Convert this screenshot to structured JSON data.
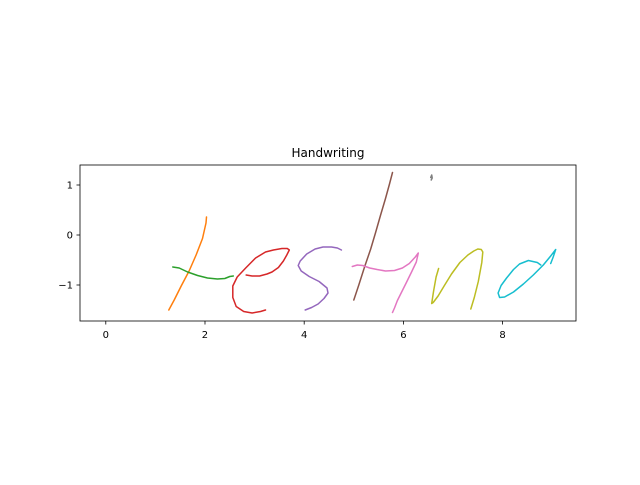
{
  "chart_data": {
    "type": "line",
    "title": "Handwriting",
    "xlabel": "",
    "ylabel": "",
    "xlim": [
      -0.52,
      9.48
    ],
    "ylim": [
      -1.72,
      1.4
    ],
    "x_ticks": [
      0,
      2,
      4,
      6,
      8
    ],
    "y_ticks": [
      1,
      0,
      -1
    ],
    "x_tick_labels": [
      "0",
      "2",
      "4",
      "6",
      "8"
    ],
    "y_tick_labels": [
      "1",
      "0",
      "−1"
    ],
    "grid": false,
    "aspect": "equal",
    "series": [
      {
        "color": "#ff7f0e",
        "x": [
          1.27,
          1.38,
          1.52,
          1.68,
          1.82,
          1.95,
          2.02,
          2.03
        ],
        "y": [
          -1.5,
          -1.3,
          -1.02,
          -0.72,
          -0.4,
          -0.07,
          0.24,
          0.36
        ]
      },
      {
        "color": "#2ca02c",
        "x": [
          1.35,
          1.48,
          1.65,
          1.85,
          2.05,
          2.25,
          2.4,
          2.5,
          2.57
        ],
        "y": [
          -0.64,
          -0.66,
          -0.74,
          -0.81,
          -0.86,
          -0.88,
          -0.87,
          -0.83,
          -0.82
        ]
      },
      {
        "color": "#d62728",
        "x": [
          2.83,
          2.95,
          3.1,
          3.25,
          3.35,
          3.48,
          3.58,
          3.65,
          3.7,
          3.66,
          3.55,
          3.38,
          3.22,
          3.02,
          2.82,
          2.65,
          2.56,
          2.56,
          2.63,
          2.78,
          2.95,
          3.12,
          3.22
        ],
        "y": [
          -0.8,
          -0.82,
          -0.82,
          -0.78,
          -0.74,
          -0.65,
          -0.52,
          -0.4,
          -0.3,
          -0.27,
          -0.27,
          -0.3,
          -0.34,
          -0.46,
          -0.66,
          -0.84,
          -1.02,
          -1.25,
          -1.43,
          -1.53,
          -1.56,
          -1.53,
          -1.5
        ]
      },
      {
        "color": "#9467bd",
        "x": [
          4.02,
          4.15,
          4.28,
          4.4,
          4.48,
          4.46,
          4.3,
          4.1,
          3.94,
          3.88,
          3.92,
          4.05,
          4.22,
          4.38,
          4.55,
          4.67,
          4.75
        ],
        "y": [
          -1.5,
          -1.45,
          -1.38,
          -1.27,
          -1.16,
          -1.06,
          -0.93,
          -0.83,
          -0.72,
          -0.61,
          -0.52,
          -0.38,
          -0.28,
          -0.24,
          -0.24,
          -0.26,
          -0.3
        ]
      },
      {
        "color": "#8c564b",
        "x": [
          5.0,
          5.1,
          5.22,
          5.34,
          5.44,
          5.54,
          5.64,
          5.72,
          5.78
        ],
        "y": [
          -1.3,
          -1.0,
          -0.63,
          -0.28,
          0.05,
          0.4,
          0.73,
          1.02,
          1.25
        ]
      },
      {
        "color": "#e377c2",
        "x": [
          4.97,
          5.07,
          5.18,
          5.32,
          5.47,
          5.64,
          5.82,
          5.98,
          6.12,
          6.24,
          6.3,
          6.26,
          6.16,
          6.06,
          5.95,
          5.88,
          5.82,
          5.78
        ],
        "y": [
          -0.63,
          -0.6,
          -0.61,
          -0.66,
          -0.69,
          -0.72,
          -0.71,
          -0.66,
          -0.57,
          -0.44,
          -0.36,
          -0.54,
          -0.75,
          -0.95,
          -1.17,
          -1.31,
          -1.46,
          -1.55
        ]
      },
      {
        "color": "#7f7f7f",
        "x": [
          6.55,
          6.57,
          6.58,
          6.56
        ],
        "y": [
          1.15,
          1.2,
          1.14,
          1.1
        ]
      },
      {
        "color": "#bcbd22",
        "x": [
          6.71,
          6.66,
          6.61,
          6.57,
          6.6,
          6.7,
          6.82,
          6.97,
          7.14,
          7.3,
          7.42,
          7.5,
          7.57,
          7.6,
          7.58,
          7.51,
          7.43,
          7.36
        ],
        "y": [
          -0.67,
          -0.84,
          -1.12,
          -1.37,
          -1.35,
          -1.22,
          -1.02,
          -0.78,
          -0.55,
          -0.4,
          -0.32,
          -0.28,
          -0.29,
          -0.34,
          -0.55,
          -0.93,
          -1.25,
          -1.48
        ]
      },
      {
        "color": "#17becf",
        "x": [
          8.77,
          8.7,
          8.52,
          8.34,
          8.22,
          8.08,
          7.97,
          7.91,
          7.94,
          8.04,
          8.22,
          8.42,
          8.62,
          8.82,
          8.97,
          9.07,
          9.02,
          8.97
        ],
        "y": [
          -0.6,
          -0.55,
          -0.51,
          -0.58,
          -0.69,
          -0.86,
          -1.01,
          -1.16,
          -1.25,
          -1.24,
          -1.14,
          -0.98,
          -0.8,
          -0.6,
          -0.42,
          -0.29,
          -0.44,
          -0.57
        ]
      }
    ]
  }
}
